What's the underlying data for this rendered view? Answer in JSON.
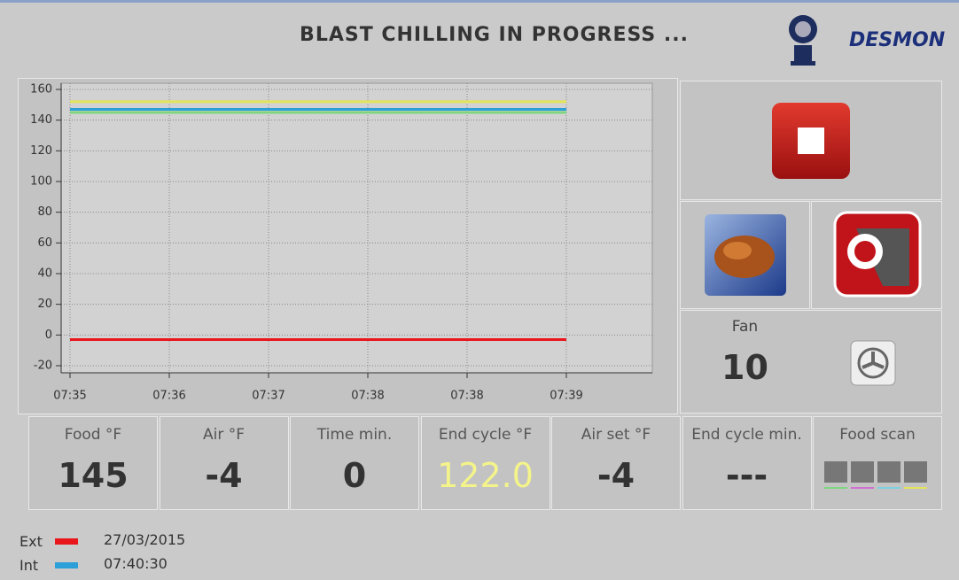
{
  "header": {
    "title": "BLAST CHILLING IN PROGRESS ...",
    "brand": "DESMON"
  },
  "chart_data": {
    "type": "line",
    "categories": [
      "07:35",
      "07:36",
      "07:37",
      "07:38",
      "07:38",
      "07:39"
    ],
    "series": [
      {
        "color": "#e4e45a",
        "values": [
          152,
          152,
          152,
          152,
          152,
          152
        ]
      },
      {
        "color": "#7fd67f",
        "values": [
          145,
          145,
          145,
          145,
          145,
          145
        ]
      },
      {
        "name": "Int",
        "color": "#2a9fd8",
        "values": [
          147,
          147,
          147,
          147,
          147,
          147
        ]
      },
      {
        "name": "Ext",
        "color": "#e8151b",
        "values": [
          -3,
          -3,
          -3,
          -3,
          -3,
          -3
        ]
      }
    ],
    "ylim": [
      -20,
      160
    ],
    "yticks": [
      -20,
      0,
      20,
      40,
      60,
      80,
      100,
      120,
      140,
      160
    ],
    "grid": true
  },
  "fan": {
    "label": "Fan",
    "value": "10"
  },
  "readouts": [
    {
      "label": "Food °F",
      "value": "145"
    },
    {
      "label": "Air °F",
      "value": "-4"
    },
    {
      "label": "Time min.",
      "value": "0"
    },
    {
      "label": "End cycle °F",
      "value": "122.0"
    },
    {
      "label": "Air set °F",
      "value": "-4"
    },
    {
      "label": "End cycle min.",
      "value": "---"
    }
  ],
  "food_scan": {
    "label": "Food scan"
  },
  "footer": {
    "date": "27/03/2015",
    "time": "07:40:30"
  }
}
